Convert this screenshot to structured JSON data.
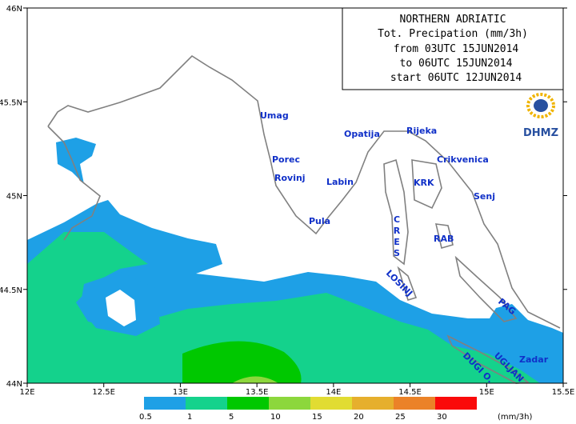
{
  "title_box": {
    "lines": [
      "NORTHERN ADRIATIC",
      "Tot. Precipation (mm/3h)",
      "from 03UTC 15JUN2014",
      "to 06UTC 15JUN2014",
      "start 06UTC 12JUN2014"
    ]
  },
  "logo": "DHMZ",
  "xticks": [
    {
      "value": 12,
      "label": "12E"
    },
    {
      "value": 12.5,
      "label": "12.5E"
    },
    {
      "value": 13,
      "label": "13E"
    },
    {
      "value": 13.5,
      "label": "13.5E"
    },
    {
      "value": 14,
      "label": "14E"
    },
    {
      "value": 14.5,
      "label": "14.5E"
    },
    {
      "value": 15,
      "label": "15E"
    },
    {
      "value": 15.5,
      "label": "15.5E"
    }
  ],
  "yticks": [
    {
      "value": 44,
      "label": "44N"
    },
    {
      "value": 44.5,
      "label": "44.5N"
    },
    {
      "value": 45,
      "label": "45N"
    },
    {
      "value": 45.5,
      "label": "45.5N"
    },
    {
      "value": 46,
      "label": "46N"
    }
  ],
  "xlim": [
    12,
    15.5
  ],
  "ylim": [
    44,
    46
  ],
  "places": [
    "Umag",
    "Porec",
    "Rovinj",
    "Pula",
    "Labin",
    "Opatija",
    "Rijeka",
    "Crikvenica",
    "KRK",
    "Senj",
    "RAB",
    "CRES",
    "LOSINJ",
    "PAG",
    "Zadar",
    "UGLJAN",
    "DUGI O."
  ],
  "colorbar": {
    "levels": [
      0.5,
      1,
      5,
      10,
      15,
      20,
      25,
      30
    ],
    "colors": [
      "#1ea0e6",
      "#14d28c",
      "#00c800",
      "#8cd73c",
      "#e1dc32",
      "#e6af2d",
      "#eb8228",
      "#fa0a0a"
    ],
    "unit": "(mm/3h)"
  }
}
